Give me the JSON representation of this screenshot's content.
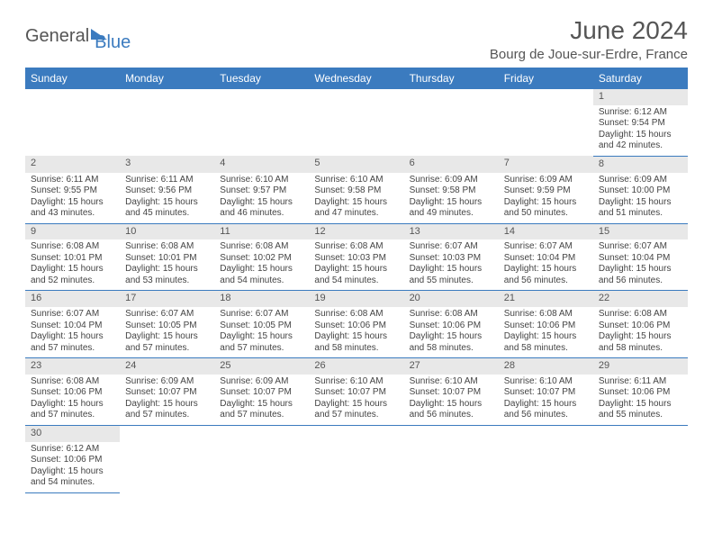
{
  "logo": {
    "part1": "General",
    "part2": "Blue"
  },
  "title": "June 2024",
  "location": "Bourg de Joue-sur-Erdre, France",
  "colors": {
    "header_bg": "#3b7bbf",
    "daynum_bg": "#e8e8e8",
    "border": "#3b7bbf",
    "text": "#444444"
  },
  "weekdays": [
    "Sunday",
    "Monday",
    "Tuesday",
    "Wednesday",
    "Thursday",
    "Friday",
    "Saturday"
  ],
  "weeks": [
    [
      null,
      null,
      null,
      null,
      null,
      null,
      {
        "n": "1",
        "sr": "Sunrise: 6:12 AM",
        "ss": "Sunset: 9:54 PM",
        "d1": "Daylight: 15 hours",
        "d2": "and 42 minutes."
      }
    ],
    [
      {
        "n": "2",
        "sr": "Sunrise: 6:11 AM",
        "ss": "Sunset: 9:55 PM",
        "d1": "Daylight: 15 hours",
        "d2": "and 43 minutes."
      },
      {
        "n": "3",
        "sr": "Sunrise: 6:11 AM",
        "ss": "Sunset: 9:56 PM",
        "d1": "Daylight: 15 hours",
        "d2": "and 45 minutes."
      },
      {
        "n": "4",
        "sr": "Sunrise: 6:10 AM",
        "ss": "Sunset: 9:57 PM",
        "d1": "Daylight: 15 hours",
        "d2": "and 46 minutes."
      },
      {
        "n": "5",
        "sr": "Sunrise: 6:10 AM",
        "ss": "Sunset: 9:58 PM",
        "d1": "Daylight: 15 hours",
        "d2": "and 47 minutes."
      },
      {
        "n": "6",
        "sr": "Sunrise: 6:09 AM",
        "ss": "Sunset: 9:58 PM",
        "d1": "Daylight: 15 hours",
        "d2": "and 49 minutes."
      },
      {
        "n": "7",
        "sr": "Sunrise: 6:09 AM",
        "ss": "Sunset: 9:59 PM",
        "d1": "Daylight: 15 hours",
        "d2": "and 50 minutes."
      },
      {
        "n": "8",
        "sr": "Sunrise: 6:09 AM",
        "ss": "Sunset: 10:00 PM",
        "d1": "Daylight: 15 hours",
        "d2": "and 51 minutes."
      }
    ],
    [
      {
        "n": "9",
        "sr": "Sunrise: 6:08 AM",
        "ss": "Sunset: 10:01 PM",
        "d1": "Daylight: 15 hours",
        "d2": "and 52 minutes."
      },
      {
        "n": "10",
        "sr": "Sunrise: 6:08 AM",
        "ss": "Sunset: 10:01 PM",
        "d1": "Daylight: 15 hours",
        "d2": "and 53 minutes."
      },
      {
        "n": "11",
        "sr": "Sunrise: 6:08 AM",
        "ss": "Sunset: 10:02 PM",
        "d1": "Daylight: 15 hours",
        "d2": "and 54 minutes."
      },
      {
        "n": "12",
        "sr": "Sunrise: 6:08 AM",
        "ss": "Sunset: 10:03 PM",
        "d1": "Daylight: 15 hours",
        "d2": "and 54 minutes."
      },
      {
        "n": "13",
        "sr": "Sunrise: 6:07 AM",
        "ss": "Sunset: 10:03 PM",
        "d1": "Daylight: 15 hours",
        "d2": "and 55 minutes."
      },
      {
        "n": "14",
        "sr": "Sunrise: 6:07 AM",
        "ss": "Sunset: 10:04 PM",
        "d1": "Daylight: 15 hours",
        "d2": "and 56 minutes."
      },
      {
        "n": "15",
        "sr": "Sunrise: 6:07 AM",
        "ss": "Sunset: 10:04 PM",
        "d1": "Daylight: 15 hours",
        "d2": "and 56 minutes."
      }
    ],
    [
      {
        "n": "16",
        "sr": "Sunrise: 6:07 AM",
        "ss": "Sunset: 10:04 PM",
        "d1": "Daylight: 15 hours",
        "d2": "and 57 minutes."
      },
      {
        "n": "17",
        "sr": "Sunrise: 6:07 AM",
        "ss": "Sunset: 10:05 PM",
        "d1": "Daylight: 15 hours",
        "d2": "and 57 minutes."
      },
      {
        "n": "18",
        "sr": "Sunrise: 6:07 AM",
        "ss": "Sunset: 10:05 PM",
        "d1": "Daylight: 15 hours",
        "d2": "and 57 minutes."
      },
      {
        "n": "19",
        "sr": "Sunrise: 6:08 AM",
        "ss": "Sunset: 10:06 PM",
        "d1": "Daylight: 15 hours",
        "d2": "and 58 minutes."
      },
      {
        "n": "20",
        "sr": "Sunrise: 6:08 AM",
        "ss": "Sunset: 10:06 PM",
        "d1": "Daylight: 15 hours",
        "d2": "and 58 minutes."
      },
      {
        "n": "21",
        "sr": "Sunrise: 6:08 AM",
        "ss": "Sunset: 10:06 PM",
        "d1": "Daylight: 15 hours",
        "d2": "and 58 minutes."
      },
      {
        "n": "22",
        "sr": "Sunrise: 6:08 AM",
        "ss": "Sunset: 10:06 PM",
        "d1": "Daylight: 15 hours",
        "d2": "and 58 minutes."
      }
    ],
    [
      {
        "n": "23",
        "sr": "Sunrise: 6:08 AM",
        "ss": "Sunset: 10:06 PM",
        "d1": "Daylight: 15 hours",
        "d2": "and 57 minutes."
      },
      {
        "n": "24",
        "sr": "Sunrise: 6:09 AM",
        "ss": "Sunset: 10:07 PM",
        "d1": "Daylight: 15 hours",
        "d2": "and 57 minutes."
      },
      {
        "n": "25",
        "sr": "Sunrise: 6:09 AM",
        "ss": "Sunset: 10:07 PM",
        "d1": "Daylight: 15 hours",
        "d2": "and 57 minutes."
      },
      {
        "n": "26",
        "sr": "Sunrise: 6:10 AM",
        "ss": "Sunset: 10:07 PM",
        "d1": "Daylight: 15 hours",
        "d2": "and 57 minutes."
      },
      {
        "n": "27",
        "sr": "Sunrise: 6:10 AM",
        "ss": "Sunset: 10:07 PM",
        "d1": "Daylight: 15 hours",
        "d2": "and 56 minutes."
      },
      {
        "n": "28",
        "sr": "Sunrise: 6:10 AM",
        "ss": "Sunset: 10:07 PM",
        "d1": "Daylight: 15 hours",
        "d2": "and 56 minutes."
      },
      {
        "n": "29",
        "sr": "Sunrise: 6:11 AM",
        "ss": "Sunset: 10:06 PM",
        "d1": "Daylight: 15 hours",
        "d2": "and 55 minutes."
      }
    ],
    [
      {
        "n": "30",
        "sr": "Sunrise: 6:12 AM",
        "ss": "Sunset: 10:06 PM",
        "d1": "Daylight: 15 hours",
        "d2": "and 54 minutes."
      },
      null,
      null,
      null,
      null,
      null,
      null
    ]
  ]
}
